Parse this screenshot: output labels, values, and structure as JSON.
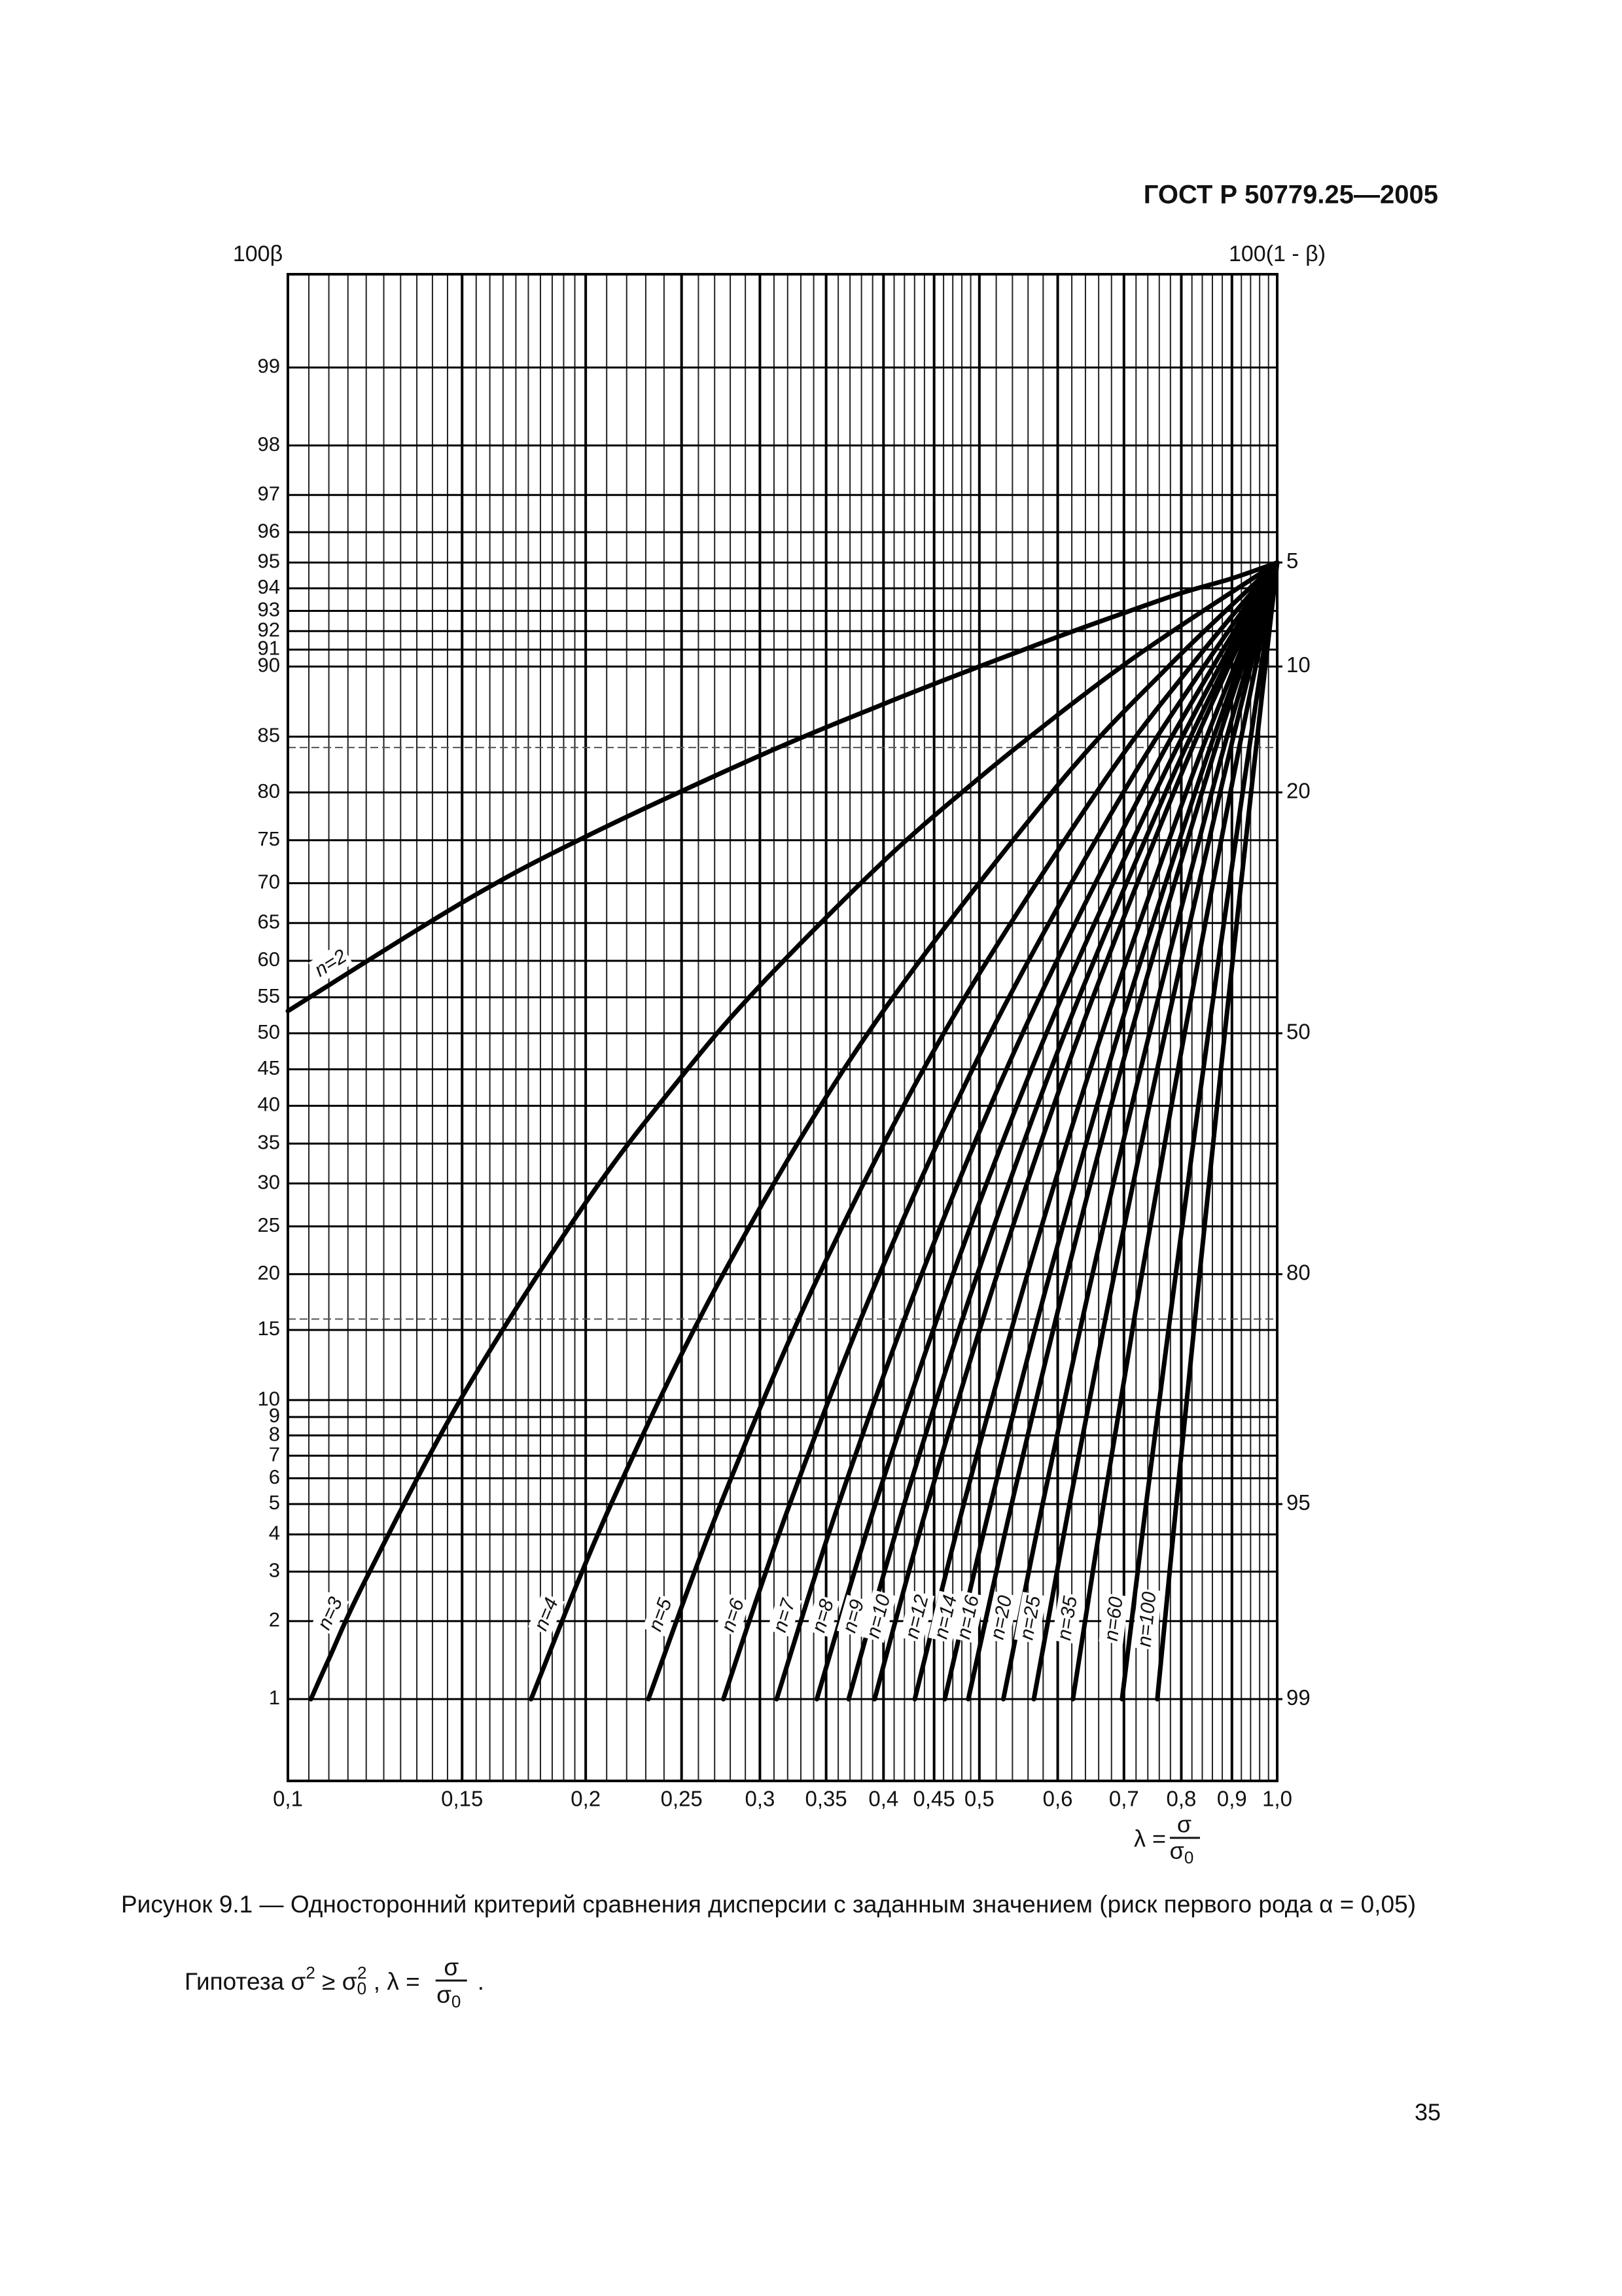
{
  "header": "ГОСТ Р 50779.25—2005",
  "chart_data": {
    "type": "line",
    "y_label": "100β",
    "y2_label": "100(1 - β)",
    "x_label": {
      "lhs": "λ =",
      "num": "σ",
      "den": "σ",
      "den_sub": "0"
    },
    "xscale": "log",
    "yscale": "probability",
    "xlim": [
      0.1,
      1.0
    ],
    "xticks": [
      {
        "value": 0.1,
        "label": "0,1"
      },
      {
        "value": 0.15,
        "label": "0,15"
      },
      {
        "value": 0.2,
        "label": "0,2"
      },
      {
        "value": 0.25,
        "label": "0,25"
      },
      {
        "value": 0.3,
        "label": "0,3"
      },
      {
        "value": 0.35,
        "label": "0,35"
      },
      {
        "value": 0.4,
        "label": "0,4"
      },
      {
        "value": 0.45,
        "label": "0,45"
      },
      {
        "value": 0.5,
        "label": "0,5"
      },
      {
        "value": 0.6,
        "label": "0,6"
      },
      {
        "value": 0.7,
        "label": "0,7"
      },
      {
        "value": 0.8,
        "label": "0,8"
      },
      {
        "value": 0.9,
        "label": "0,9"
      },
      {
        "value": 1.0,
        "label": "1,0"
      }
    ],
    "xminor": [
      0.105,
      0.11,
      0.115,
      0.12,
      0.125,
      0.13,
      0.135,
      0.14,
      0.145,
      0.155,
      0.16,
      0.165,
      0.17,
      0.175,
      0.18,
      0.185,
      0.19,
      0.195,
      0.21,
      0.22,
      0.23,
      0.24,
      0.26,
      0.27,
      0.28,
      0.29,
      0.31,
      0.32,
      0.33,
      0.34,
      0.36,
      0.37,
      0.38,
      0.39,
      0.41,
      0.42,
      0.43,
      0.44,
      0.46,
      0.47,
      0.48,
      0.49,
      0.52,
      0.54,
      0.56,
      0.58,
      0.62,
      0.64,
      0.66,
      0.68,
      0.72,
      0.74,
      0.76,
      0.78,
      0.82,
      0.84,
      0.86,
      0.88,
      0.92,
      0.94,
      0.96,
      0.98
    ],
    "ylim": [
      0.45,
      99.6
    ],
    "yticks": [
      1,
      2,
      3,
      4,
      5,
      6,
      7,
      8,
      9,
      10,
      15,
      20,
      25,
      30,
      35,
      40,
      45,
      50,
      55,
      60,
      65,
      70,
      75,
      80,
      85,
      90,
      91,
      92,
      93,
      94,
      95,
      96,
      97,
      98,
      99
    ],
    "y2lim": [
      99.55,
      0.4
    ],
    "y2ticks": [
      5,
      10,
      20,
      50,
      80,
      95,
      99
    ],
    "ref_lines": [
      84.1,
      15.9
    ],
    "grid": true,
    "series": [
      {
        "name": "n=2",
        "color": "#000000",
        "x": [
          0.1,
          0.15,
          0.2,
          0.3,
          0.4,
          0.5,
          0.6,
          0.7,
          0.8,
          0.9,
          1.0
        ],
        "values": [
          53.1,
          67.6,
          75.4,
          83.4,
          87.5,
          90.0,
          91.7,
          92.9,
          93.8,
          94.4,
          95
        ]
      },
      {
        "name": "n=3",
        "color": "#000000",
        "x": [
          0.1055,
          0.11,
          0.12,
          0.15,
          0.2,
          0.25,
          0.3,
          0.4,
          0.5,
          0.6,
          0.7,
          0.8,
          1.0
        ],
        "values": [
          1,
          1.44,
          2.84,
          10.2,
          27.7,
          44.0,
          56.6,
          72.6,
          81.4,
          86.7,
          90.1,
          92.3,
          95
        ]
      },
      {
        "name": "n=4",
        "color": "#000000",
        "x": [
          0.1761,
          0.2122,
          0.2754,
          0.3857,
          0.5918,
          0.7764,
          1.0
        ],
        "values": [
          1,
          5,
          20,
          50,
          80,
          90,
          95
        ]
      },
      {
        "name": "n=5",
        "color": "#000000",
        "x": [
          0.2314,
          0.2738,
          0.3446,
          0.4602,
          0.6566,
          0.8175,
          1.0
        ],
        "values": [
          1,
          5,
          20,
          50,
          80,
          90,
          95
        ]
      },
      {
        "name": "n=6",
        "color": "#000000",
        "x": [
          0.2755,
          0.3216,
          0.3963,
          0.513,
          0.6991,
          0.8433,
          1.0
        ],
        "values": [
          1,
          5,
          20,
          50,
          80,
          90,
          95
        ]
      },
      {
        "name": "n=7",
        "color": "#000000",
        "x": [
          0.3119,
          0.3603,
          0.4371,
          0.5529,
          0.7298,
          0.8613,
          1.0
        ],
        "values": [
          1,
          5,
          20,
          50,
          80,
          90,
          95
        ]
      },
      {
        "name": "n=8",
        "color": "#000000",
        "x": [
          0.3425,
          0.3925,
          0.4702,
          0.5844,
          0.753,
          0.8746,
          1.0
        ],
        "values": [
          1,
          5,
          20,
          50,
          80,
          90,
          95
        ]
      },
      {
        "name": "n=9",
        "color": "#000000",
        "x": [
          0.3688,
          0.4198,
          0.4978,
          0.61,
          0.7713,
          0.8849,
          1.0
        ],
        "values": [
          1,
          5,
          20,
          50,
          80,
          90,
          95
        ]
      },
      {
        "name": "n=10",
        "color": "#000000",
        "x": [
          0.3918,
          0.4433,
          0.5212,
          0.6313,
          0.7861,
          0.8932,
          1.0
        ],
        "values": [
          1,
          5,
          20,
          50,
          80,
          90,
          95
        ]
      },
      {
        "name": "n=12",
        "color": "#000000",
        "x": [
          0.4302,
          0.4822,
          0.5592,
          0.6651,
          0.8091,
          0.9056,
          1.0
        ],
        "values": [
          1,
          5,
          20,
          50,
          80,
          90,
          95
        ]
      },
      {
        "name": "n=14",
        "color": "#000000",
        "x": [
          0.4613,
          0.5133,
          0.589,
          0.691,
          0.8261,
          0.9147,
          1.0
        ],
        "values": [
          1,
          5,
          20,
          50,
          80,
          90,
          95
        ]
      },
      {
        "name": "n=16",
        "color": "#000000",
        "x": [
          0.4873,
          0.539,
          0.6132,
          0.7116,
          0.8393,
          0.9217,
          1.0
        ],
        "values": [
          1,
          5,
          20,
          50,
          80,
          90,
          95
        ]
      },
      {
        "name": "n=20",
        "color": "#000000",
        "x": [
          0.5287,
          0.5793,
          0.6506,
          0.7428,
          0.8588,
          0.9318,
          1.0
        ],
        "values": [
          1,
          5,
          20,
          50,
          80,
          90,
          95
        ]
      },
      {
        "name": "n=25",
        "color": "#000000",
        "x": [
          0.5676,
          0.6167,
          0.6845,
          0.7703,
          0.8756,
          0.9404,
          1.0
        ],
        "values": [
          1,
          5,
          20,
          50,
          80,
          90,
          95
        ]
      },
      {
        "name": "n=35",
        "color": "#000000",
        "x": [
          0.6216,
          0.6676,
          0.7298,
          0.8061,
          0.8968,
          0.9511,
          1.0
        ],
        "values": [
          1,
          5,
          20,
          50,
          80,
          90,
          95
        ]
      },
      {
        "name": "n=60",
        "color": "#000000",
        "x": [
          0.6969,
          0.7371,
          0.7897,
          0.8519,
          0.9228,
          0.9638,
          1.0
        ],
        "values": [
          1,
          5,
          20,
          50,
          80,
          90,
          95
        ]
      },
      {
        "name": "n=100",
        "color": "#000000",
        "x": [
          0.7565,
          0.7907,
          0.8347,
          0.8852,
          0.941,
          0.9726,
          1.0
        ],
        "values": [
          1,
          5,
          20,
          50,
          80,
          90,
          95
        ]
      }
    ]
  },
  "caption": "Рисунок 9.1 — Односторонний критерий сравнения дисперсии с заданным значением (риск первого рода α = 0,05)",
  "hypothesis": {
    "lead": "Гипотеза σ",
    "sup1": "2",
    "rel": " ≥ σ",
    "sub2": "0",
    "sup2": "2",
    "eq": " , λ =",
    "num": "σ",
    "den": "σ",
    "den_sub": "0",
    "end": "."
  },
  "page_number": "35"
}
